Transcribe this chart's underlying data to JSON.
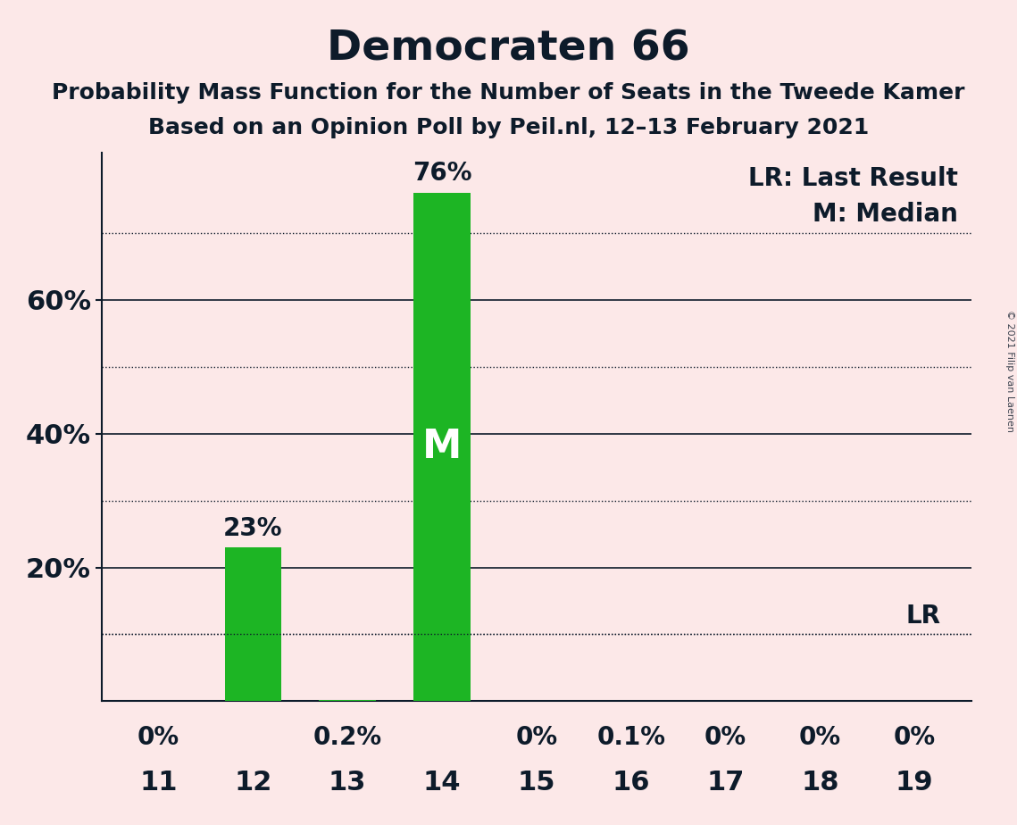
{
  "title": "Democraten 66",
  "subtitle1": "Probability Mass Function for the Number of Seats in the Tweede Kamer",
  "subtitle2": "Based on an Opinion Poll by Peil.nl, 12–13 February 2021",
  "copyright": "© 2021 Filip van Laenen",
  "seats": [
    11,
    12,
    13,
    14,
    15,
    16,
    17,
    18,
    19
  ],
  "probabilities": [
    0.0,
    0.23,
    0.002,
    0.76,
    0.0,
    0.001,
    0.0,
    0.0,
    0.0
  ],
  "bar_labels": [
    "0%",
    "23%",
    "0.2%",
    "76%",
    "0%",
    "0.1%",
    "0%",
    "0%",
    "0%"
  ],
  "bar_color": "#1db524",
  "background_color": "#fce8e8",
  "text_color": "#0d1b2a",
  "median_seat": 14,
  "median_label": "M",
  "lr_value": 0.1,
  "lr_label": "LR",
  "legend_lr": "LR: Last Result",
  "legend_m": "M: Median",
  "yticks": [
    0.2,
    0.4,
    0.6
  ],
  "ytick_labels": [
    "20%",
    "40%",
    "60%"
  ],
  "dotted_lines": [
    0.1,
    0.3,
    0.5,
    0.7
  ],
  "ylim": [
    0,
    0.82
  ],
  "title_fontsize": 34,
  "subtitle_fontsize": 18,
  "axis_fontsize": 22,
  "bar_label_fontsize": 20,
  "legend_fontsize": 20,
  "median_label_fontsize": 32
}
